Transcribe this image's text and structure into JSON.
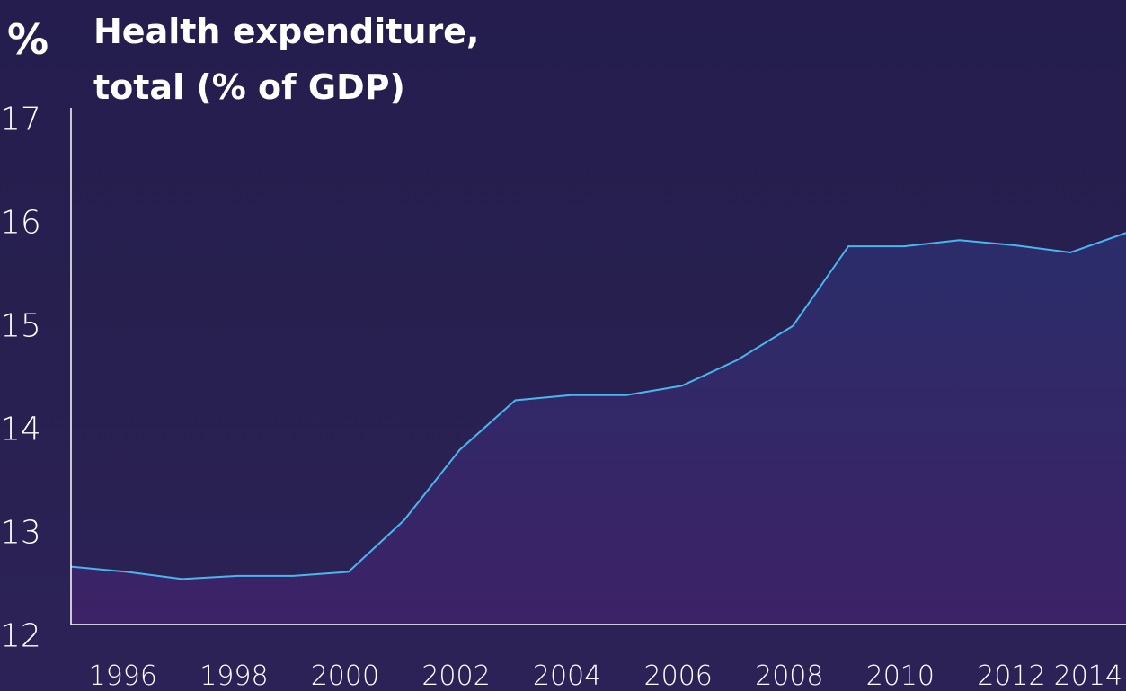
{
  "chart_data": {
    "type": "area",
    "title": "Health expenditure, total (% of GDP)",
    "ylabel": "%",
    "xlabel": "",
    "x": [
      1995,
      1996,
      1997,
      1998,
      1999,
      2000,
      2001,
      2002,
      2003,
      2004,
      2005,
      2006,
      2007,
      2008,
      2009,
      2010,
      2011,
      2012,
      2013,
      2014
    ],
    "series": [
      {
        "values": [
          12.66,
          12.61,
          12.54,
          12.57,
          12.57,
          12.61,
          13.11,
          13.79,
          14.27,
          14.32,
          14.32,
          14.41,
          14.66,
          14.99,
          15.76,
          15.76,
          15.82,
          15.77,
          15.7,
          15.89
        ]
      }
    ],
    "x_ticks": [
      "1996",
      "1998",
      "2000",
      "2002",
      "2004",
      "2006",
      "2008",
      "2010",
      "2012",
      "2014"
    ],
    "y_ticks": [
      "12",
      "13",
      "14",
      "15",
      "16",
      "17"
    ],
    "ylim": [
      12.1,
      17.1
    ],
    "xlim": [
      1995,
      2014
    ],
    "grid": false,
    "colors": {
      "line": "#4ab6ee",
      "area_top": "#2b2d6a",
      "area_bottom": "#3c2266",
      "axis": "#ffffff",
      "text": "#ffffff"
    }
  }
}
